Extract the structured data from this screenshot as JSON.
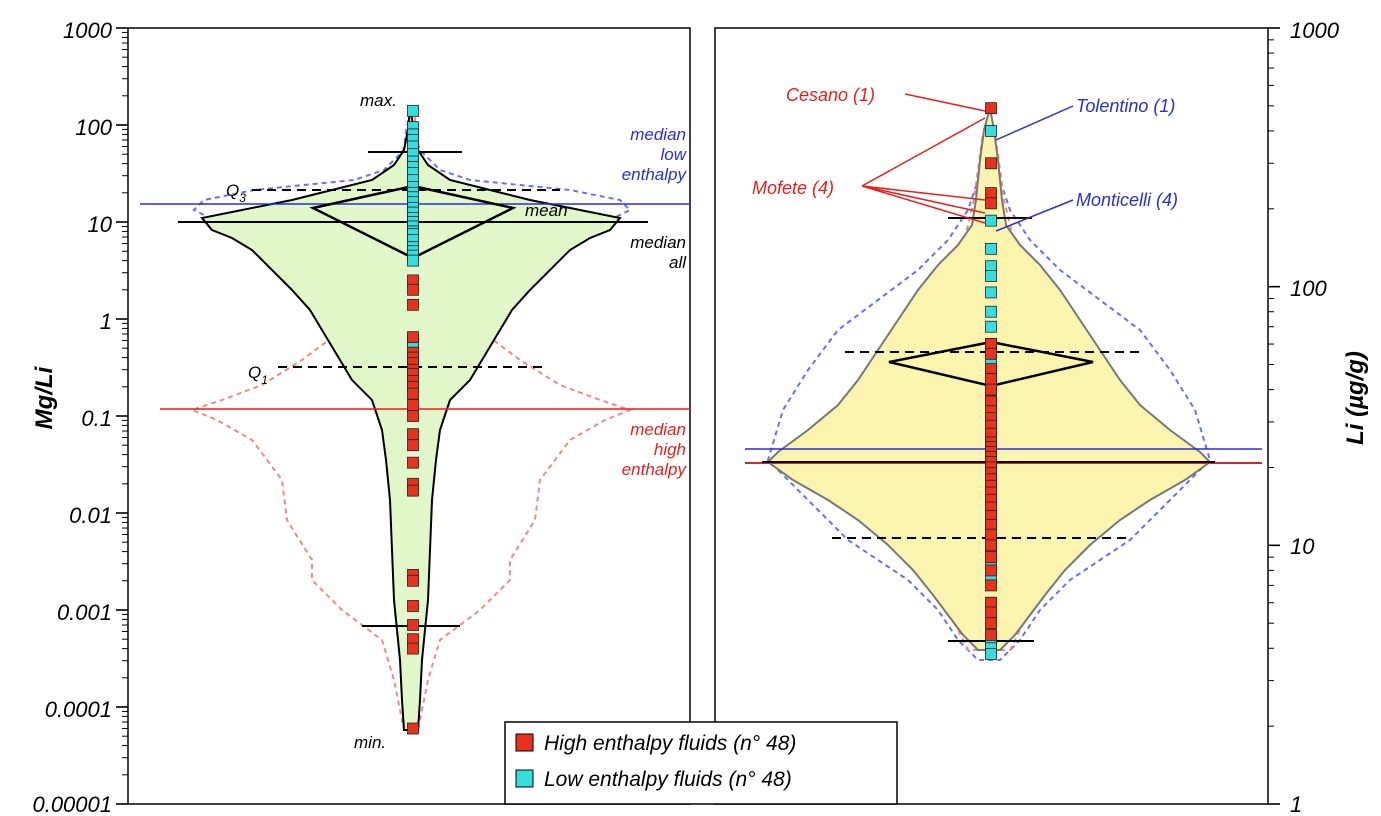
{
  "chart_data": [
    {
      "type": "violin",
      "panel": "left",
      "ylabel": "Mg/Li",
      "yscale": "log",
      "ylim": [
        1e-05,
        1000
      ],
      "ytick_labels": [
        "1000",
        "100",
        "10",
        "1",
        "0.1",
        "0.01",
        "0.001",
        "0.0001",
        "0.00001"
      ],
      "statistics": {
        "max": 140,
        "q3": 21,
        "mean": 14,
        "median_all": 10,
        "median_low_enthalpy": 15,
        "median_high_enthalpy": 0.12,
        "q1": 0.33,
        "min": 6e-05,
        "upper_whisker": 55,
        "lower_whisker": 0.0007
      },
      "high_enthalpy_values": [
        2.5,
        2.0,
        1.4,
        0.65,
        0.45,
        0.4,
        0.35,
        0.3,
        0.27,
        0.23,
        0.2,
        0.17,
        0.13,
        0.1,
        0.065,
        0.05,
        0.033,
        0.02,
        0.017,
        0.0023,
        0.002,
        0.0011,
        0.0007,
        0.0005,
        0.0004,
        6e-05
      ],
      "low_enthalpy_values": [
        140,
        95,
        80,
        70,
        60,
        50,
        42,
        37,
        32,
        27,
        23,
        20,
        18,
        16,
        14,
        12.5,
        11,
        10,
        9,
        8,
        7.5,
        6.5,
        5.5,
        5,
        4.5,
        4,
        0.6,
        0.55
      ],
      "annotations": {
        "max": "max.",
        "min": "min.",
        "q3": "Q",
        "q3_sub": "3",
        "q1": "Q",
        "q1_sub": "1",
        "mean": "mean",
        "median_all": [
          "median",
          "all"
        ],
        "median_low": [
          "median",
          "low",
          "enthalpy"
        ],
        "median_high": [
          "median",
          "high",
          "enthalpy"
        ]
      }
    },
    {
      "type": "violin",
      "panel": "right",
      "ylabel": "Li (µg/g)",
      "yscale": "log",
      "ylim": [
        1,
        1000
      ],
      "ytick_labels": [
        "1000",
        "100",
        "10",
        "1"
      ],
      "statistics": {
        "upper_whisker": 210,
        "q3": 55,
        "mean": 48,
        "median_all": 20,
        "median_low_enthalpy": 23,
        "median_high_enthalpy": 20,
        "q1": 11,
        "lower_whisker": 4.5
      },
      "high_enthalpy_values": [
        490,
        300,
        230,
        210,
        60,
        55,
        48,
        44,
        40,
        36,
        33,
        31,
        29,
        27,
        25,
        24,
        23,
        22,
        21,
        20,
        19,
        18,
        17,
        16,
        15,
        14,
        13,
        12,
        11,
        10,
        9,
        8,
        7,
        6,
        5.5,
        5,
        4.5
      ],
      "low_enthalpy_values": [
        400,
        180,
        140,
        120,
        110,
        95,
        80,
        70,
        60,
        52,
        47,
        43,
        39,
        35,
        30,
        26,
        24,
        19,
        17,
        15,
        13,
        12,
        10.5,
        9.5,
        8.5,
        7.5,
        4.3,
        4,
        3.8
      ],
      "callouts": [
        {
          "label": "Cesano (1)",
          "color": "#e4211d"
        },
        {
          "label": "Tolentino (1)",
          "color": "#2a2fd0"
        },
        {
          "label": "Mofete (4)",
          "color": "#e4211d"
        },
        {
          "label": "Monticelli (4)",
          "color": "#2a2fd0"
        }
      ]
    }
  ],
  "legend": {
    "items": [
      {
        "label": "High enthalpy fluids (n° 48)",
        "color": "#e8321d"
      },
      {
        "label": "Low enthalpy fluids (n° 48)",
        "color": "#33dde0"
      }
    ]
  },
  "colors": {
    "high": "#e8321d",
    "low": "#33dde0",
    "left_fill": "#e2f7c9",
    "right_fill": "#fbf4ae",
    "red_line": "#e4211d",
    "blue_line": "#2a2fd0"
  }
}
